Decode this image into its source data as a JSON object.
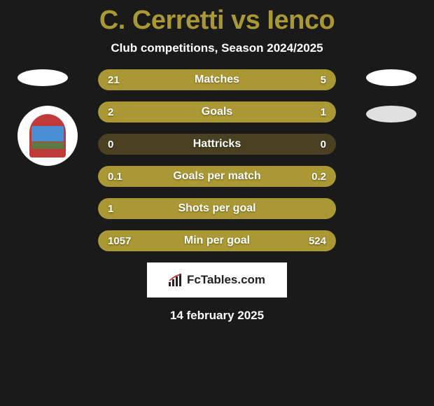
{
  "title": "C. Cerretti vs Ienco",
  "subtitle": "Club competitions, Season 2024/2025",
  "date": "14 february 2025",
  "logo_text": "FcTables.com",
  "colors": {
    "accent": "#a99833",
    "bar_bg": "#4a4022",
    "page_bg": "#1a1a1a",
    "ellipse_right": "#e0e0e0"
  },
  "bars": [
    {
      "label": "Matches",
      "left": "21",
      "right": "5",
      "left_pct": 80,
      "right_pct": 20
    },
    {
      "label": "Goals",
      "left": "2",
      "right": "1",
      "left_pct": 66,
      "right_pct": 34
    },
    {
      "label": "Hattricks",
      "left": "0",
      "right": "0",
      "left_pct": 0,
      "right_pct": 0
    },
    {
      "label": "Goals per match",
      "left": "0.1",
      "right": "0.2",
      "left_pct": 33,
      "right_pct": 67
    },
    {
      "label": "Shots per goal",
      "left": "1",
      "right": "",
      "left_pct": 100,
      "right_pct": 0
    },
    {
      "label": "Min per goal",
      "left": "1057",
      "right": "524",
      "left_pct": 67,
      "right_pct": 33
    }
  ]
}
